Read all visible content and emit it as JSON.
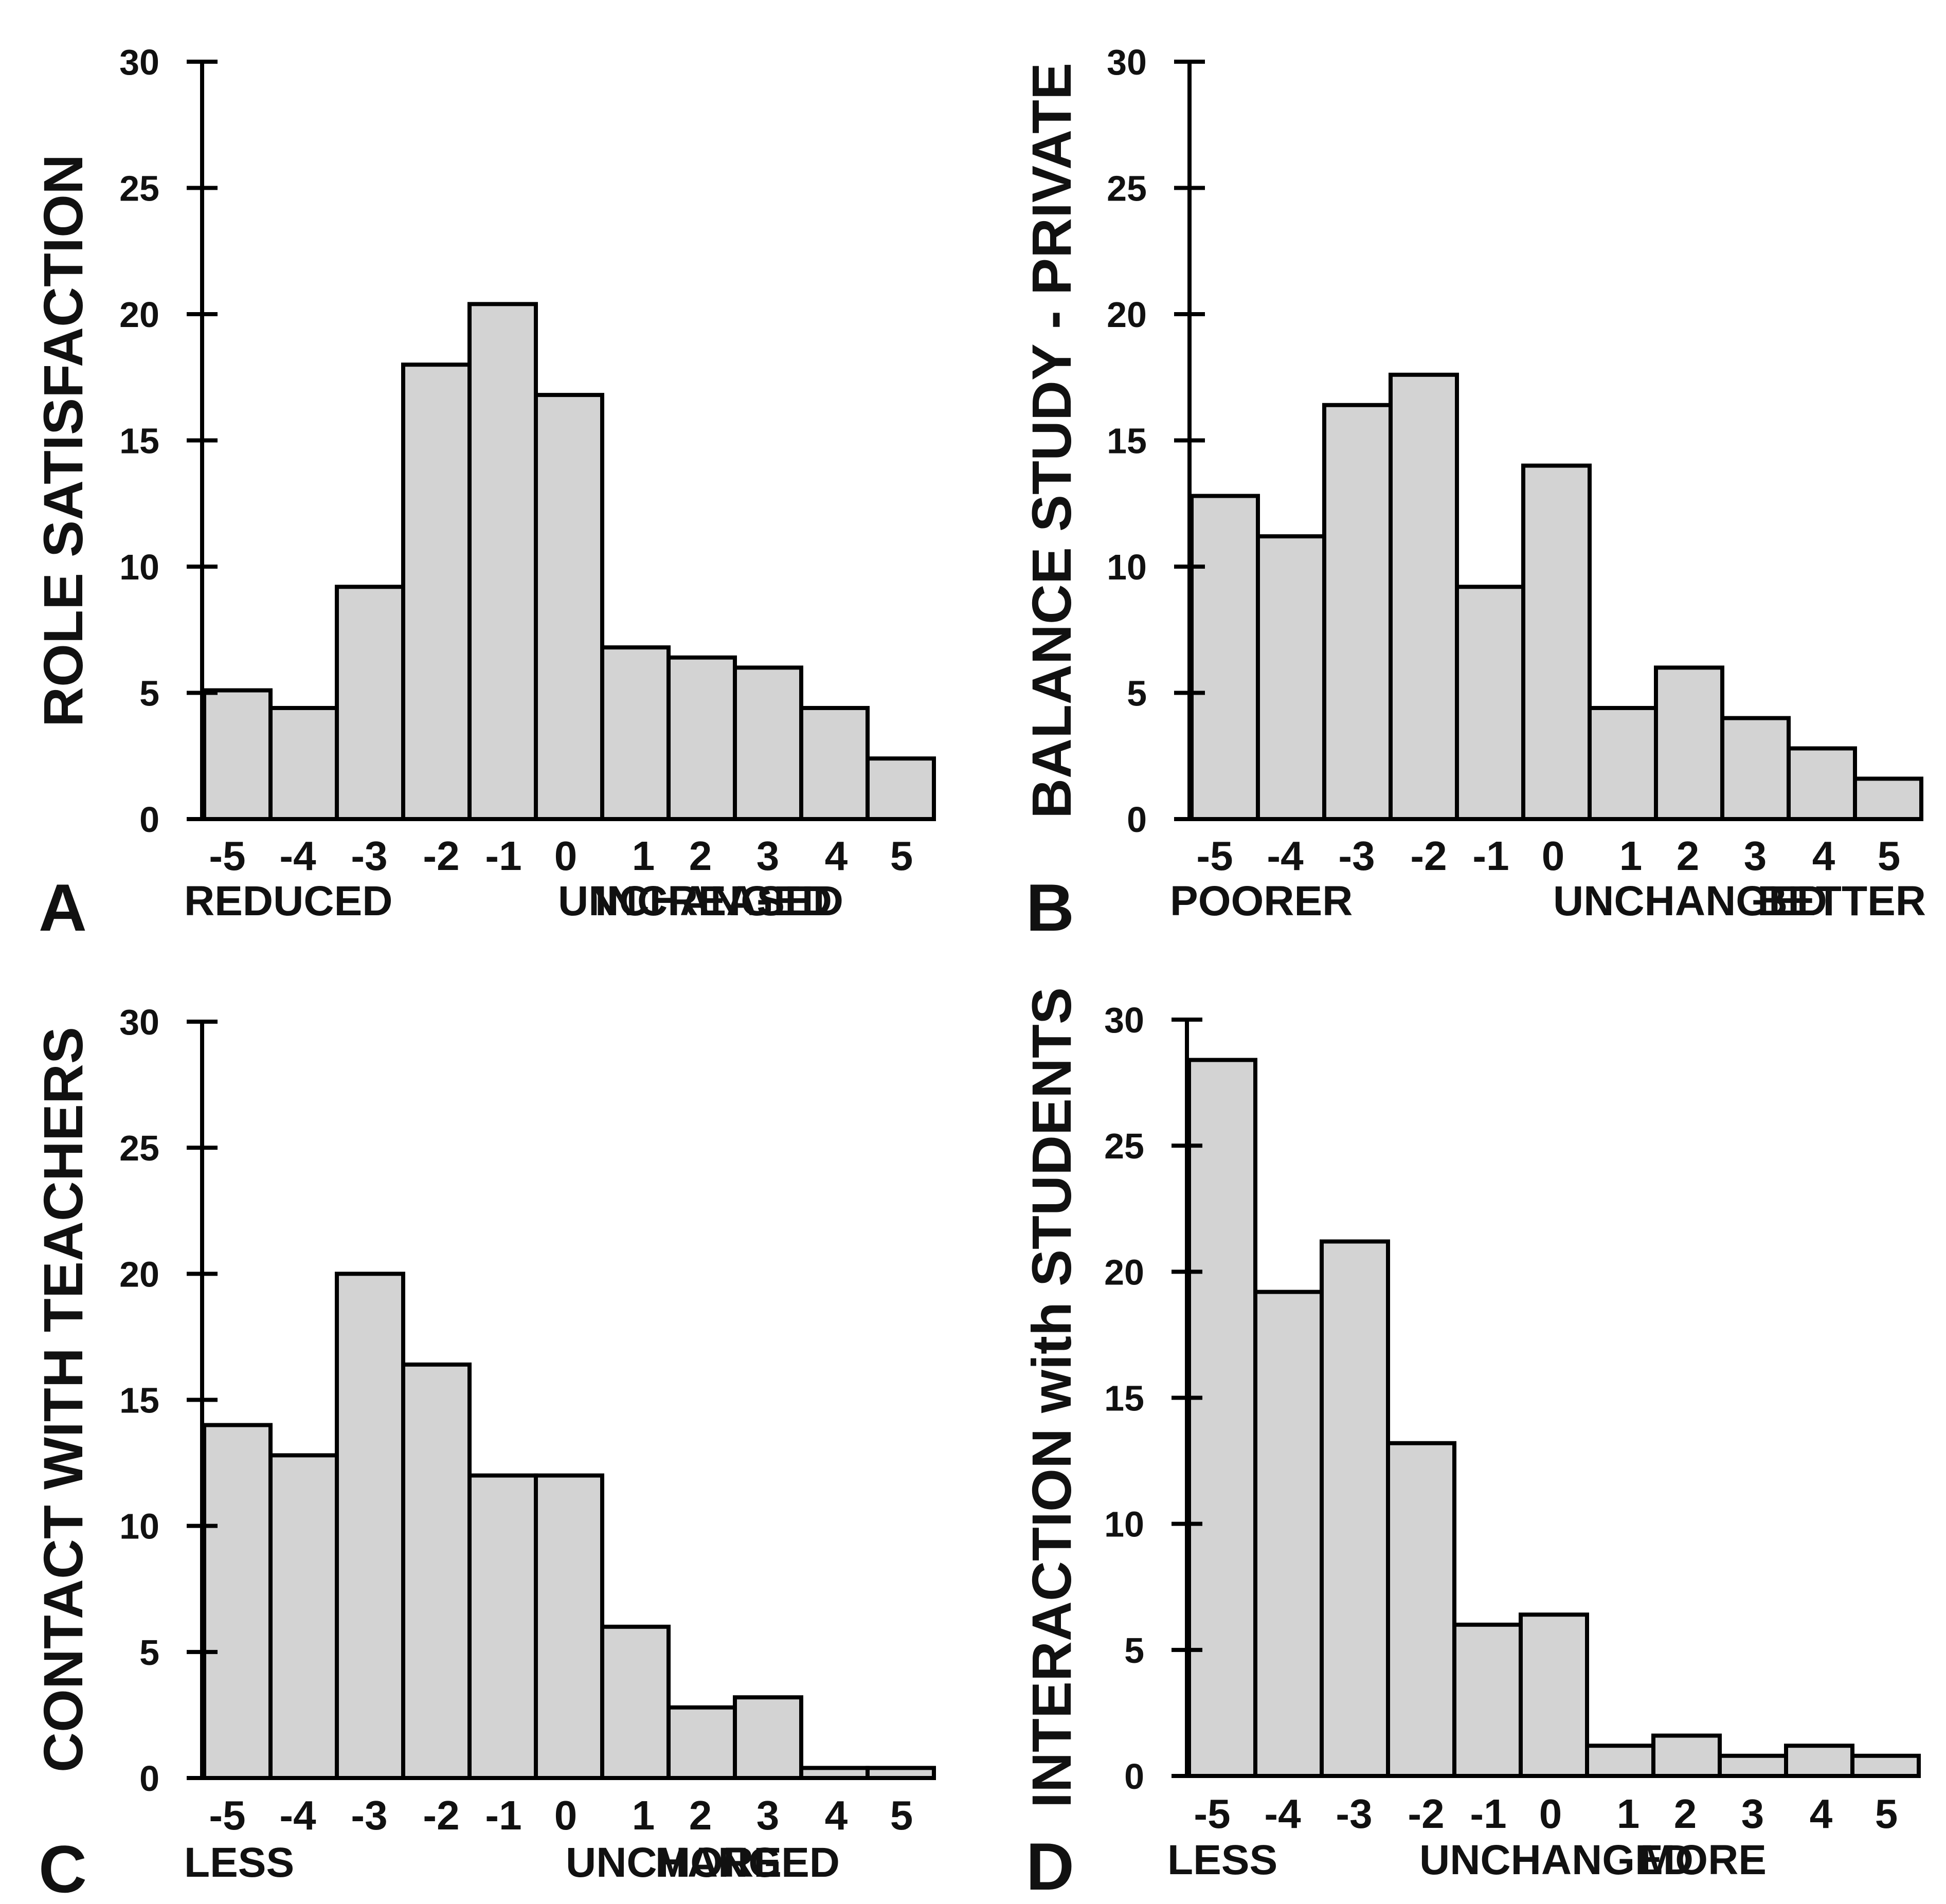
{
  "figure": {
    "panels": [
      {
        "letter": "A",
        "ylabel": "ROLE SATISFACTION",
        "scale_labels": {
          "left": "REDUCED",
          "middle": "UNCHANGED",
          "right": "INCREASED"
        }
      },
      {
        "letter": "B",
        "ylabel": "BALANCE STUDY - PRIVATE",
        "scale_labels": {
          "left": "POORER",
          "middle": "UNCHANGED",
          "right": "BETTER"
        }
      },
      {
        "letter": "C",
        "ylabel": "CONTACT WITH TEACHERS",
        "scale_labels": {
          "left": "LESS",
          "middle": "UNCHANGED",
          "right": "MORE"
        }
      },
      {
        "letter": "D",
        "ylabel": "INTERACTION with STUDENTS",
        "scale_labels": {
          "left": "LESS",
          "middle": "UNCHANGED",
          "right": "MORE"
        }
      }
    ]
  },
  "chart_data": [
    {
      "type": "bar",
      "panel": "A",
      "title": "",
      "xlabel": "",
      "ylabel": "ROLE SATISFACTION",
      "categories": [
        "-5",
        "-4",
        "-3",
        "-2",
        "-1",
        "0",
        "1",
        "2",
        "3",
        "4",
        "5"
      ],
      "values": [
        5.1,
        4.4,
        9.2,
        18.0,
        20.4,
        16.8,
        6.8,
        6.4,
        6.0,
        4.4,
        2.4
      ],
      "ylim": [
        0,
        30
      ],
      "yticks": [
        0,
        5,
        10,
        15,
        20,
        25,
        30
      ],
      "grid": false
    },
    {
      "type": "bar",
      "panel": "B",
      "title": "",
      "xlabel": "",
      "ylabel": "BALANCE STUDY - PRIVATE",
      "categories": [
        "-5",
        "-4",
        "-3",
        "-2",
        "-1",
        "0",
        "1",
        "2",
        "3",
        "4",
        "5"
      ],
      "values": [
        12.8,
        11.2,
        16.4,
        17.6,
        9.2,
        14.0,
        4.4,
        6.0,
        4.0,
        2.8,
        1.6
      ],
      "ylim": [
        0,
        30
      ],
      "yticks": [
        0,
        5,
        10,
        15,
        20,
        25,
        30
      ],
      "grid": false
    },
    {
      "type": "bar",
      "panel": "C",
      "title": "",
      "xlabel": "",
      "ylabel": "CONTACT WITH TEACHERS",
      "categories": [
        "-5",
        "-4",
        "-3",
        "-2",
        "-1",
        "0",
        "1",
        "2",
        "3",
        "4",
        "5"
      ],
      "values": [
        14.0,
        12.8,
        20.0,
        16.4,
        12.0,
        12.0,
        6.0,
        2.8,
        3.2,
        0.4,
        0.4
      ],
      "ylim": [
        0,
        30
      ],
      "yticks": [
        0,
        5,
        10,
        15,
        20,
        25,
        30
      ],
      "grid": false
    },
    {
      "type": "bar",
      "panel": "D",
      "title": "",
      "xlabel": "",
      "ylabel": "INTERACTION with STUDENTS",
      "categories": [
        "-5",
        "-4",
        "-3",
        "-2",
        "-1",
        "0",
        "1",
        "2",
        "3",
        "4",
        "5"
      ],
      "values": [
        28.4,
        19.2,
        21.2,
        13.2,
        6.0,
        6.4,
        1.2,
        1.6,
        0.8,
        1.2,
        0.8
      ],
      "ylim": [
        0,
        30
      ],
      "yticks": [
        0,
        5,
        10,
        15,
        20,
        25,
        30
      ],
      "grid": false
    }
  ]
}
